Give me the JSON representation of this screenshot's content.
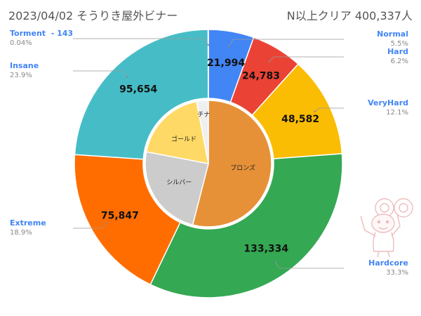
{
  "header": {
    "title": "2023/04/02 そうりき屋外ビナー",
    "summary": "N以上クリア  400,337人"
  },
  "chart_data": {
    "type": "pie",
    "subtype": "double-donut",
    "title": "2023/04/02 そうりき屋外ビナー",
    "outer_ring": [
      {
        "name": "Normal",
        "value": 21994,
        "value_label": "21,994",
        "percent": "5.5%",
        "color": "#4285f4",
        "label_color": "#4285f4"
      },
      {
        "name": "Hard",
        "value": 24783,
        "value_label": "24,783",
        "percent": "6.2%",
        "color": "#ea4335",
        "label_color": "#4285f4"
      },
      {
        "name": "VeryHard",
        "value": 48582,
        "value_label": "48,582",
        "percent": "12.1%",
        "color": "#fbbc04",
        "label_color": "#4285f4"
      },
      {
        "name": "Hardcore",
        "value": 133334,
        "value_label": "133,334",
        "percent": "33.3%",
        "color": "#34a853",
        "label_color": "#4285f4"
      },
      {
        "name": "Extreme",
        "value": 75847,
        "value_label": "75,847",
        "percent": "18.9%",
        "color": "#ff6d01",
        "label_color": "#4285f4"
      },
      {
        "name": "Insane",
        "value": 95654,
        "value_label": "95,654",
        "percent": "23.9%",
        "color": "#46bdc6",
        "label_color": "#4285f4"
      },
      {
        "name": "Torment  - 143",
        "value": 143,
        "value_label": "",
        "percent": "0.04%",
        "color": "#aaaaaa",
        "label_color": "#4285f4"
      }
    ],
    "inner_ring": [
      {
        "name": "ブロンズ",
        "value": 54,
        "color": "#e69138"
      },
      {
        "name": "シルバー",
        "value": 24,
        "color": "#cccccc"
      },
      {
        "name": "ゴールド",
        "value": 19,
        "color": "#ffd966"
      },
      {
        "name": "チナ",
        "value": 3,
        "color": "#efefef"
      }
    ],
    "legend": "labels-outside-left-right"
  }
}
